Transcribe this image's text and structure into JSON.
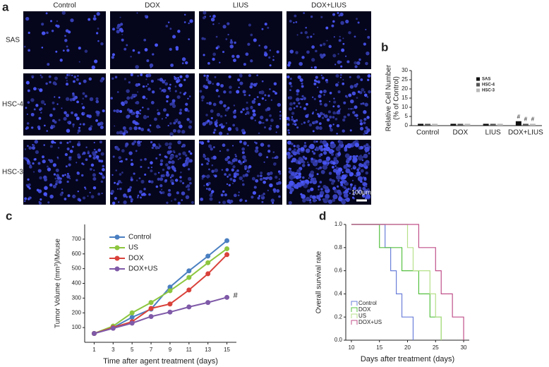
{
  "panel_a": {
    "label": "a",
    "columns": [
      "Control",
      "DOX",
      "LIUS",
      "DOX+LIUS"
    ],
    "rows": [
      "SAS",
      "HSC-4",
      "HSC-3"
    ],
    "scale_bar": "100μm"
  },
  "chart_data": [
    {
      "label": "b",
      "type": "bar",
      "ylabel": [
        "Relative Cell Number",
        "(% of Control)"
      ],
      "categories": [
        "Control",
        "DOX",
        "LIUS",
        "DOX+LIUS"
      ],
      "series": [
        {
          "name": "SAS",
          "color": "#111111",
          "values": [
            1,
            1,
            1,
            2.4
          ]
        },
        {
          "name": "HSC-4",
          "color": "#555555",
          "values": [
            1,
            1,
            1,
            1
          ]
        },
        {
          "name": "HSC-3",
          "color": "#b8b8b8",
          "values": [
            1,
            1,
            1,
            1
          ]
        }
      ],
      "ylim": [
        0,
        30
      ],
      "yticks": [
        0,
        5,
        10,
        15,
        20,
        25,
        30
      ],
      "annotation": "#",
      "annotated_category": 3
    },
    {
      "label": "c",
      "type": "line",
      "xlabel": "Time after agent treatment (days)",
      "ylabel": "Tumor Volume (mm³)/Mouse",
      "x": [
        1,
        3,
        5,
        7,
        9,
        11,
        13,
        15
      ],
      "series": [
        {
          "name": "Control",
          "color": "#4a7fc1",
          "values": [
            60,
            100,
            170,
            225,
            375,
            485,
            585,
            690
          ]
        },
        {
          "name": "US",
          "color": "#8dc63f",
          "values": [
            60,
            110,
            200,
            270,
            350,
            440,
            540,
            635
          ]
        },
        {
          "name": "DOX",
          "color": "#d9413a",
          "values": [
            60,
            100,
            140,
            230,
            260,
            355,
            465,
            595
          ]
        },
        {
          "name": "DOX+US",
          "color": "#7f5aa8",
          "values": [
            60,
            95,
            130,
            175,
            205,
            240,
            270,
            305
          ]
        }
      ],
      "xlim": [
        0,
        16
      ],
      "xticks": [
        1,
        3,
        5,
        7,
        9,
        11,
        13,
        15
      ],
      "ylim": [
        0,
        800
      ],
      "yticks": [
        100,
        200,
        300,
        400,
        500,
        600,
        700
      ],
      "annotation": "#"
    },
    {
      "label": "d",
      "type": "step",
      "xlabel": "Days after treatment (days)",
      "ylabel": "Overall survival rate",
      "series": [
        {
          "name": "Control",
          "color": "#6a7fd8",
          "x": [
            10,
            16,
            17,
            18,
            19,
            21
          ],
          "values": [
            1,
            0.8,
            0.6,
            0.4,
            0.2,
            0
          ]
        },
        {
          "name": "DOX",
          "color": "#55c040",
          "x": [
            10,
            15,
            19,
            22,
            24,
            26
          ],
          "values": [
            1,
            0.8,
            0.6,
            0.4,
            0.2,
            0
          ]
        },
        {
          "name": "US",
          "color": "#b5e08a",
          "x": [
            10,
            20,
            21,
            24,
            25,
            26
          ],
          "values": [
            1,
            0.8,
            0.6,
            0.4,
            0.2,
            0
          ]
        },
        {
          "name": "DOX+US",
          "color": "#c0508a",
          "x": [
            10,
            22,
            25,
            26,
            28,
            30
          ],
          "values": [
            1,
            0.8,
            0.6,
            0.4,
            0.2,
            0
          ]
        }
      ],
      "xlim": [
        9,
        31
      ],
      "xticks": [
        10,
        15,
        20,
        25,
        30
      ],
      "ylim": [
        0,
        1
      ],
      "yticks": [
        {
          "value": 0,
          "label": "0.0"
        },
        {
          "value": 0.2,
          "label": "0.2"
        },
        {
          "value": 0.4,
          "label": "0.4"
        },
        {
          "value": 0.6,
          "label": "0.6"
        },
        {
          "value": 0.8,
          "label": "0.8"
        },
        {
          "value": 1,
          "label": "1.0"
        }
      ]
    }
  ]
}
